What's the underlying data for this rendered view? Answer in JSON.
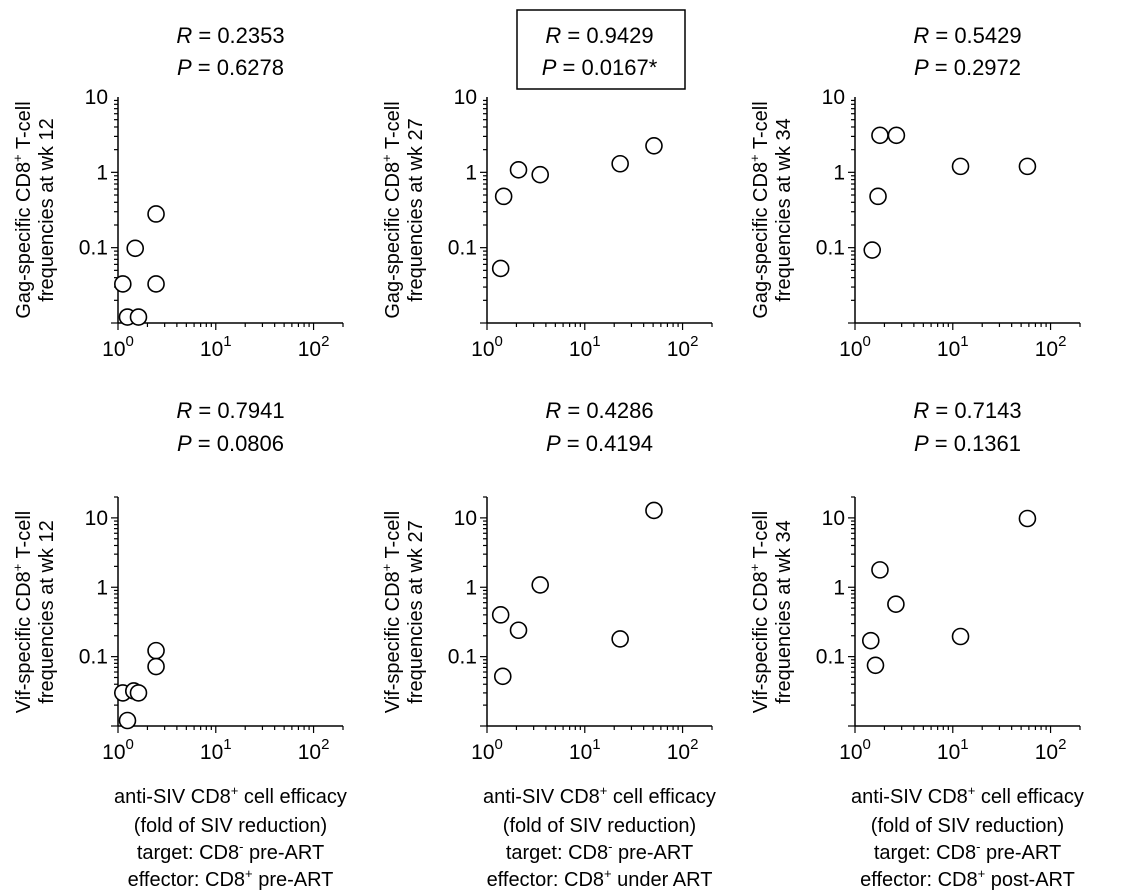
{
  "chart_data": [
    {
      "type": "scatter",
      "panel": 1,
      "annotation": {
        "r_label": "R",
        "r_value": "= 0.2353",
        "p_label": "P",
        "p_value": "= 0.6278",
        "boxed": false
      },
      "ylabel": {
        "line1_pre": "Gag-specific CD8",
        "line1_sup": "+",
        "line1_post": " T-cell",
        "line2": "frequencies at wk 12"
      },
      "xscale": "log",
      "yscale": "log",
      "xlim": [
        1,
        200
      ],
      "ylim": [
        0.01,
        10
      ],
      "xticks": [
        {
          "value": 1,
          "base": "10",
          "exp": "0"
        },
        {
          "value": 10,
          "base": "10",
          "exp": "1"
        },
        {
          "value": 100,
          "base": "10",
          "exp": "2"
        }
      ],
      "yticks": [
        {
          "value": 0.1,
          "label": "0.1"
        },
        {
          "value": 1,
          "label": "1"
        },
        {
          "value": 10,
          "label": "10"
        }
      ],
      "points": [
        {
          "x": 1.12,
          "y": 0.033
        },
        {
          "x": 1.25,
          "y": 0.012
        },
        {
          "x": 1.5,
          "y": 0.098
        },
        {
          "x": 1.62,
          "y": 0.012
        },
        {
          "x": 2.45,
          "y": 0.28
        },
        {
          "x": 2.45,
          "y": 0.033
        }
      ]
    },
    {
      "type": "scatter",
      "panel": 2,
      "annotation": {
        "r_label": "R",
        "r_value": "= 0.9429",
        "p_label": "P",
        "p_value": "= 0.0167*",
        "boxed": true
      },
      "ylabel": {
        "line1_pre": "Gag-specific CD8",
        "line1_sup": "+",
        "line1_post": " T-cell",
        "line2": "frequencies at wk 27"
      },
      "xscale": "log",
      "yscale": "log",
      "xlim": [
        1,
        200
      ],
      "ylim": [
        0.01,
        10
      ],
      "xticks": [
        {
          "value": 1,
          "base": "10",
          "exp": "0"
        },
        {
          "value": 10,
          "base": "10",
          "exp": "1"
        },
        {
          "value": 100,
          "base": "10",
          "exp": "2"
        }
      ],
      "yticks": [
        {
          "value": 0.1,
          "label": "0.1"
        },
        {
          "value": 1,
          "label": "1"
        },
        {
          "value": 10,
          "label": "10"
        }
      ],
      "points": [
        {
          "x": 1.38,
          "y": 0.053
        },
        {
          "x": 1.48,
          "y": 0.48
        },
        {
          "x": 2.1,
          "y": 1.08
        },
        {
          "x": 3.5,
          "y": 0.93
        },
        {
          "x": 23,
          "y": 1.3
        },
        {
          "x": 51,
          "y": 2.25
        }
      ]
    },
    {
      "type": "scatter",
      "panel": 3,
      "annotation": {
        "r_label": "R",
        "r_value": "= 0.5429",
        "p_label": "P",
        "p_value": "= 0.2972",
        "boxed": false
      },
      "ylabel": {
        "line1_pre": "Gag-specific CD8",
        "line1_sup": "+",
        "line1_post": " T-cell",
        "line2": "frequencies at wk 34"
      },
      "xscale": "log",
      "yscale": "log",
      "xlim": [
        1,
        200
      ],
      "ylim": [
        0.01,
        10
      ],
      "xticks": [
        {
          "value": 1,
          "base": "10",
          "exp": "0"
        },
        {
          "value": 10,
          "base": "10",
          "exp": "1"
        },
        {
          "value": 100,
          "base": "10",
          "exp": "2"
        }
      ],
      "yticks": [
        {
          "value": 0.1,
          "label": "0.1"
        },
        {
          "value": 1,
          "label": "1"
        },
        {
          "value": 10,
          "label": "10"
        }
      ],
      "points": [
        {
          "x": 1.5,
          "y": 0.093
        },
        {
          "x": 1.72,
          "y": 0.48
        },
        {
          "x": 1.8,
          "y": 3.1
        },
        {
          "x": 2.65,
          "y": 3.1
        },
        {
          "x": 12,
          "y": 1.2
        },
        {
          "x": 58,
          "y": 1.2
        }
      ]
    },
    {
      "type": "scatter",
      "panel": 4,
      "annotation": {
        "r_label": "R",
        "r_value": "= 0.7941",
        "p_label": "P",
        "p_value": "= 0.0806",
        "boxed": false
      },
      "ylabel": {
        "line1_pre": "Vif-specific CD8",
        "line1_sup": "+",
        "line1_post": " T-cell",
        "line2": "frequencies at wk 12"
      },
      "xscale": "log",
      "yscale": "log",
      "xlim": [
        1,
        200
      ],
      "ylim": [
        0.01,
        20
      ],
      "xticks": [
        {
          "value": 1,
          "base": "10",
          "exp": "0"
        },
        {
          "value": 10,
          "base": "10",
          "exp": "1"
        },
        {
          "value": 100,
          "base": "10",
          "exp": "2"
        }
      ],
      "yticks": [
        {
          "value": 0.1,
          "label": "0.1"
        },
        {
          "value": 1,
          "label": "1"
        },
        {
          "value": 10,
          "label": "10"
        }
      ],
      "points": [
        {
          "x": 1.12,
          "y": 0.03
        },
        {
          "x": 1.25,
          "y": 0.012
        },
        {
          "x": 1.45,
          "y": 0.032
        },
        {
          "x": 1.62,
          "y": 0.03
        },
        {
          "x": 2.45,
          "y": 0.122
        },
        {
          "x": 2.45,
          "y": 0.072
        }
      ]
    },
    {
      "type": "scatter",
      "panel": 5,
      "annotation": {
        "r_label": "R",
        "r_value": "= 0.4286",
        "p_label": "P",
        "p_value": "= 0.4194",
        "boxed": false
      },
      "ylabel": {
        "line1_pre": "Vif-specific CD8",
        "line1_sup": "+",
        "line1_post": " T-cell",
        "line2": "frequencies at wk 27"
      },
      "xscale": "log",
      "yscale": "log",
      "xlim": [
        1,
        200
      ],
      "ylim": [
        0.01,
        20
      ],
      "xticks": [
        {
          "value": 1,
          "base": "10",
          "exp": "0"
        },
        {
          "value": 10,
          "base": "10",
          "exp": "1"
        },
        {
          "value": 100,
          "base": "10",
          "exp": "2"
        }
      ],
      "yticks": [
        {
          "value": 0.1,
          "label": "0.1"
        },
        {
          "value": 1,
          "label": "1"
        },
        {
          "value": 10,
          "label": "10"
        }
      ],
      "points": [
        {
          "x": 1.38,
          "y": 0.4
        },
        {
          "x": 1.45,
          "y": 0.052
        },
        {
          "x": 2.1,
          "y": 0.24
        },
        {
          "x": 3.5,
          "y": 1.08
        },
        {
          "x": 23,
          "y": 0.18
        },
        {
          "x": 51,
          "y": 12.8
        }
      ]
    },
    {
      "type": "scatter",
      "panel": 6,
      "annotation": {
        "r_label": "R",
        "r_value": "= 0.7143",
        "p_label": "P",
        "p_value": "= 0.1361",
        "boxed": false
      },
      "ylabel": {
        "line1_pre": "Vif-specific CD8",
        "line1_sup": "+",
        "line1_post": " T-cell",
        "line2": "frequencies at wk 34"
      },
      "xscale": "log",
      "yscale": "log",
      "xlim": [
        1,
        200
      ],
      "ylim": [
        0.01,
        20
      ],
      "xticks": [
        {
          "value": 1,
          "base": "10",
          "exp": "0"
        },
        {
          "value": 10,
          "base": "10",
          "exp": "1"
        },
        {
          "value": 100,
          "base": "10",
          "exp": "2"
        }
      ],
      "yticks": [
        {
          "value": 0.1,
          "label": "0.1"
        },
        {
          "value": 1,
          "label": "1"
        },
        {
          "value": 10,
          "label": "10"
        }
      ],
      "points": [
        {
          "x": 1.45,
          "y": 0.17
        },
        {
          "x": 1.62,
          "y": 0.075
        },
        {
          "x": 1.8,
          "y": 1.78
        },
        {
          "x": 2.62,
          "y": 0.57
        },
        {
          "x": 12,
          "y": 0.195
        },
        {
          "x": 58,
          "y": 9.8
        }
      ]
    }
  ],
  "footer": [
    {
      "l1_pre": "anti-SIV CD8",
      "l1_sup": "+",
      "l1_post": " cell efficacy",
      "l2": "(fold of SIV reduction)",
      "l3_pre": "target: CD8",
      "l3_sup": "-",
      "l3_post": " pre-ART",
      "l4_pre": "effector: CD8",
      "l4_sup": "+",
      "l4_post": " pre-ART"
    },
    {
      "l1_pre": "anti-SIV CD8",
      "l1_sup": "+",
      "l1_post": " cell efficacy",
      "l2": "(fold of SIV reduction)",
      "l3_pre": "target: CD8",
      "l3_sup": "-",
      "l3_post": " pre-ART",
      "l4_pre": "effector: CD8",
      "l4_sup": "+",
      "l4_post": " under ART"
    },
    {
      "l1_pre": "anti-SIV CD8",
      "l1_sup": "+",
      "l1_post": " cell efficacy",
      "l2": "(fold of SIV reduction)",
      "l3_pre": "target: CD8",
      "l3_sup": "-",
      "l3_post": " pre-ART",
      "l4_pre": "effector: CD8",
      "l4_sup": "+",
      "l4_post": " post-ART"
    }
  ]
}
